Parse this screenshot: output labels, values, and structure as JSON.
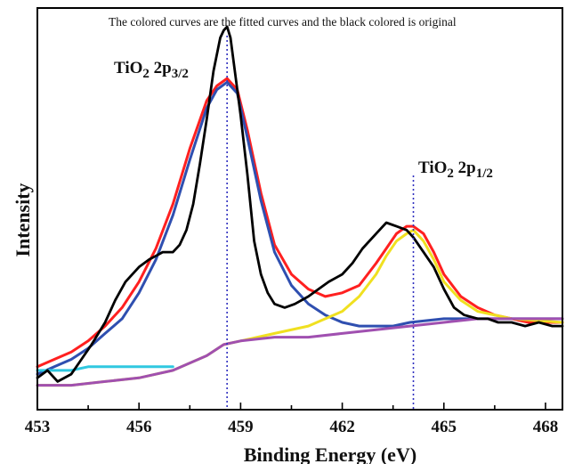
{
  "chart_data": {
    "type": "line",
    "title": "",
    "annotation": "The colored curves are the fitted curves and the black colored is original",
    "xlabel": "Binding Energy (eV)",
    "ylabel": "Intensity",
    "xlim": [
      453,
      468.5
    ],
    "ylim": [
      0,
      1
    ],
    "xticks": [
      "453",
      "456",
      "459",
      "462",
      "465",
      "468"
    ],
    "grid": false,
    "legend": "none",
    "peaks": [
      {
        "base": "TiO",
        "sub2": "2",
        "mid": " 2p",
        "sub": "3/2",
        "x": 458.6
      },
      {
        "base": "TiO",
        "sub2": "2",
        "mid": " 2p",
        "sub": "1/2",
        "x": 464.1
      }
    ],
    "series": [
      {
        "color": "#000000",
        "x": [
          453.0,
          453.3,
          453.6,
          454.0,
          454.3,
          454.6,
          455.0,
          455.3,
          455.6,
          456.0,
          456.3,
          456.5,
          456.7,
          457.0,
          457.2,
          457.4,
          457.6,
          457.8,
          458.0,
          458.2,
          458.4,
          458.5,
          458.6,
          458.7,
          458.8,
          459.0,
          459.2,
          459.4,
          459.6,
          459.8,
          460.0,
          460.3,
          460.6,
          461.0,
          461.3,
          461.6,
          462.0,
          462.3,
          462.6,
          463.0,
          463.3,
          463.6,
          463.9,
          464.1,
          464.4,
          464.7,
          465.0,
          465.3,
          465.6,
          466.0,
          466.3,
          466.6,
          467.0,
          467.4,
          467.8,
          468.2,
          468.5
        ],
        "y": [
          0.05,
          0.07,
          0.04,
          0.06,
          0.1,
          0.14,
          0.2,
          0.26,
          0.31,
          0.35,
          0.37,
          0.38,
          0.39,
          0.39,
          0.41,
          0.45,
          0.52,
          0.63,
          0.75,
          0.88,
          0.97,
          0.99,
          1.0,
          0.97,
          0.9,
          0.76,
          0.6,
          0.42,
          0.33,
          0.28,
          0.25,
          0.24,
          0.25,
          0.27,
          0.29,
          0.31,
          0.33,
          0.36,
          0.4,
          0.44,
          0.47,
          0.46,
          0.45,
          0.43,
          0.39,
          0.35,
          0.29,
          0.24,
          0.22,
          0.21,
          0.21,
          0.2,
          0.2,
          0.19,
          0.2,
          0.19,
          0.19
        ]
      },
      {
        "color": "#ff2020",
        "x": [
          453.0,
          453.5,
          454.0,
          454.5,
          455.0,
          455.5,
          456.0,
          456.5,
          457.0,
          457.5,
          458.0,
          458.3,
          458.6,
          458.9,
          459.2,
          459.6,
          460.0,
          460.5,
          461.0,
          461.5,
          462.0,
          462.5,
          463.0,
          463.3,
          463.6,
          463.9,
          464.1,
          464.4,
          464.7,
          465.0,
          465.5,
          466.0,
          466.5,
          467.0,
          467.5,
          468.0,
          468.5
        ],
        "y": [
          0.08,
          0.1,
          0.12,
          0.15,
          0.19,
          0.24,
          0.31,
          0.4,
          0.52,
          0.67,
          0.8,
          0.84,
          0.86,
          0.83,
          0.72,
          0.55,
          0.41,
          0.33,
          0.29,
          0.27,
          0.28,
          0.3,
          0.36,
          0.4,
          0.44,
          0.46,
          0.46,
          0.44,
          0.39,
          0.33,
          0.27,
          0.24,
          0.22,
          0.21,
          0.2,
          0.2,
          0.2
        ]
      },
      {
        "color": "#2f4fb0",
        "x": [
          453.0,
          453.5,
          454.0,
          454.5,
          455.0,
          455.5,
          456.0,
          456.5,
          457.0,
          457.5,
          458.0,
          458.3,
          458.6,
          458.9,
          459.2,
          459.6,
          460.0,
          460.5,
          461.0,
          461.5,
          462.0,
          462.5,
          463.0,
          463.5,
          464.0,
          465.0,
          466.0,
          467.0,
          468.5
        ],
        "y": [
          0.06,
          0.08,
          0.1,
          0.13,
          0.17,
          0.21,
          0.28,
          0.37,
          0.49,
          0.64,
          0.78,
          0.83,
          0.85,
          0.82,
          0.7,
          0.53,
          0.39,
          0.3,
          0.25,
          0.22,
          0.2,
          0.19,
          0.19,
          0.19,
          0.2,
          0.21,
          0.21,
          0.21,
          0.21
        ]
      },
      {
        "color": "#f0e020",
        "x": [
          453.0,
          454.0,
          455.0,
          456.0,
          457.0,
          458.0,
          458.5,
          459.0,
          460.0,
          461.0,
          462.0,
          462.5,
          463.0,
          463.3,
          463.6,
          463.9,
          464.1,
          464.4,
          464.7,
          465.0,
          465.5,
          466.0,
          467.0,
          468.5
        ],
        "y": [
          0.03,
          0.03,
          0.04,
          0.05,
          0.07,
          0.11,
          0.14,
          0.15,
          0.17,
          0.19,
          0.23,
          0.27,
          0.33,
          0.38,
          0.42,
          0.44,
          0.45,
          0.42,
          0.37,
          0.31,
          0.26,
          0.23,
          0.21,
          0.2
        ]
      },
      {
        "color": "#a050b0",
        "x": [
          453.0,
          454.0,
          455.0,
          456.0,
          457.0,
          458.0,
          458.5,
          459.0,
          460.0,
          461.0,
          462.0,
          463.0,
          464.0,
          465.0,
          466.0,
          467.0,
          468.5
        ],
        "y": [
          0.03,
          0.03,
          0.04,
          0.05,
          0.07,
          0.11,
          0.14,
          0.15,
          0.16,
          0.16,
          0.17,
          0.18,
          0.19,
          0.2,
          0.21,
          0.21,
          0.21
        ]
      },
      {
        "color": "#30c8e0",
        "x": [
          453.0,
          453.5,
          454.0,
          454.5,
          455.0,
          455.5,
          456.0,
          456.5,
          457.0
        ],
        "y": [
          0.07,
          0.07,
          0.07,
          0.08,
          0.08,
          0.08,
          0.08,
          0.08,
          0.08
        ]
      }
    ]
  }
}
